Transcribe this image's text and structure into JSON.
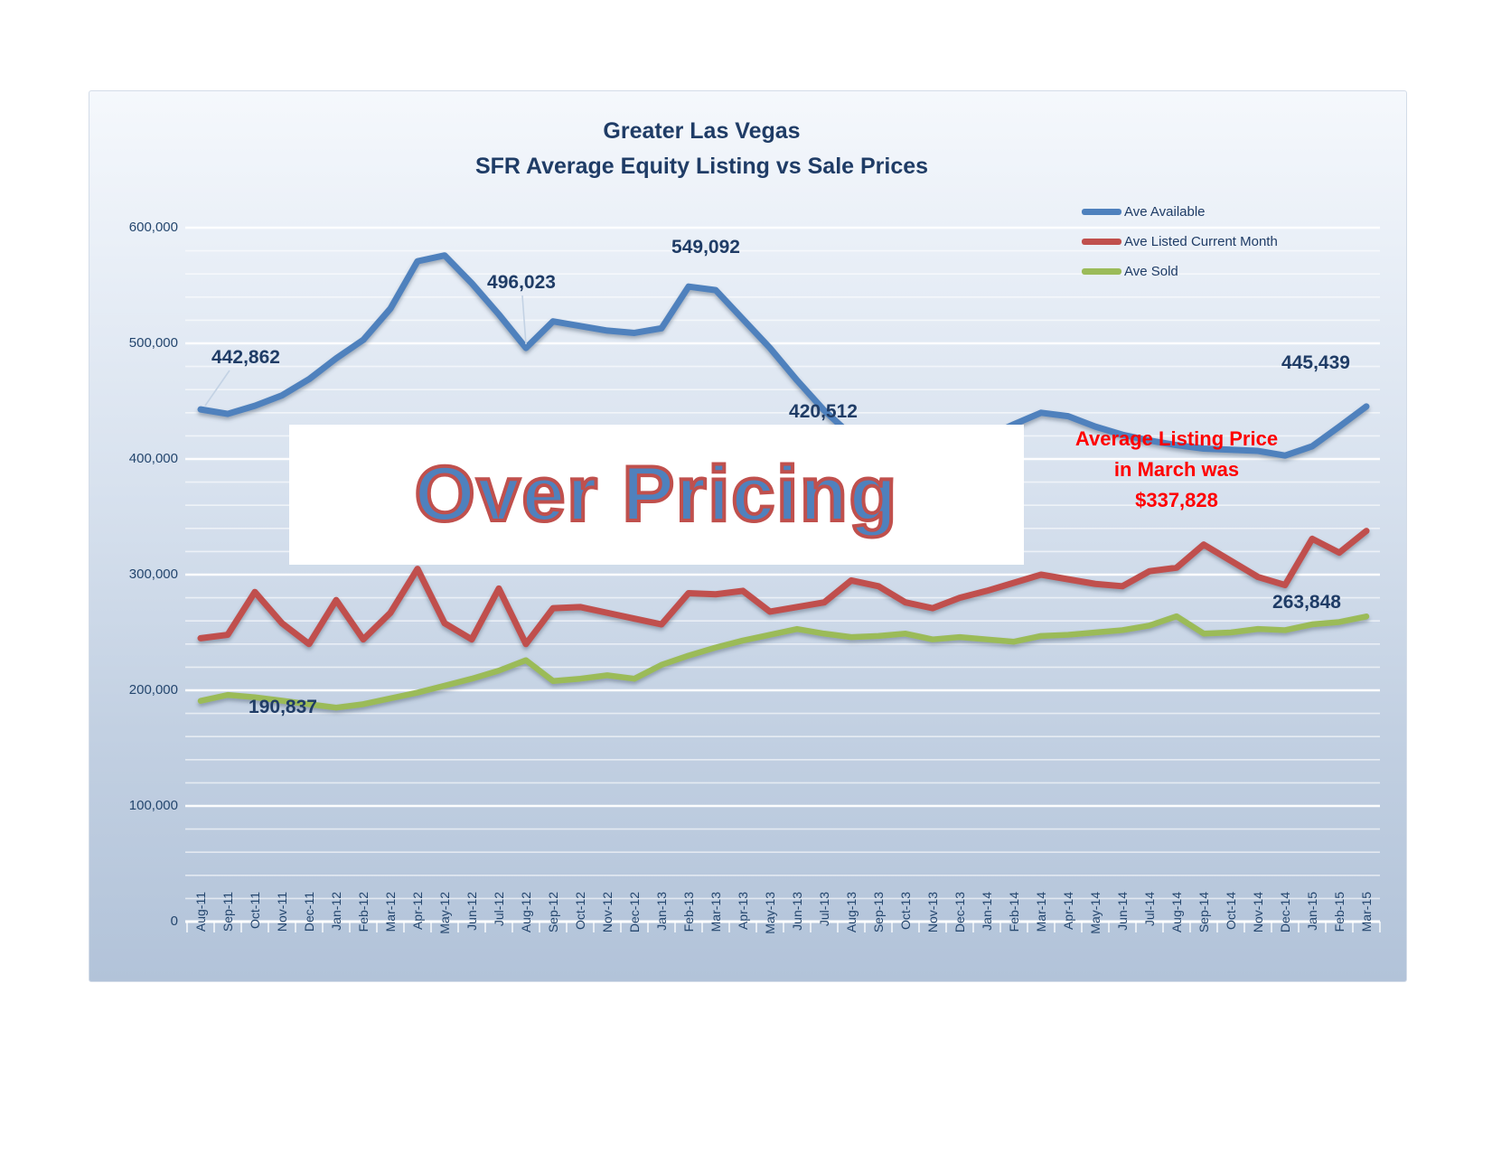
{
  "title": {
    "line1": "Greater Las Vegas",
    "line2": "SFR Average Equity Listing vs Sale Prices"
  },
  "watermark": {
    "text": "Over Pricing"
  },
  "annotation": {
    "line1": "Average Listing Price",
    "line2": "in March was",
    "line3": "$337,828"
  },
  "colors": {
    "available": "#4f81bd",
    "listed": "#c0504d",
    "sold": "#9bbb59",
    "title_text": "#1f3c66",
    "annotation_text": "#ff0000",
    "gridline": "#ffffff",
    "watermark_fill": "#4f81bd",
    "watermark_outline": "#c0504d"
  },
  "legend": {
    "items": [
      {
        "label": "Ave Available",
        "color": "#4f81bd"
      },
      {
        "label": "Ave Listed Current Month",
        "color": "#c0504d"
      },
      {
        "label": "Ave Sold",
        "color": "#9bbb59"
      }
    ]
  },
  "y_axis": {
    "tick_labels": [
      "600,000",
      "500,000",
      "400,000",
      "300,000",
      "200,000",
      "100,000",
      "0"
    ],
    "tick_values": [
      600000,
      500000,
      400000,
      300000,
      200000,
      100000,
      0
    ]
  },
  "point_labels": [
    {
      "text": "442,862",
      "series": "Ave Available",
      "category": "Aug-11"
    },
    {
      "text": "496,023",
      "series": "Ave Available",
      "category": "Aug-12"
    },
    {
      "text": "549,092",
      "series": "Ave Available",
      "category": "Feb-13"
    },
    {
      "text": "420,512",
      "series": "Ave Available",
      "category": "Aug-13"
    },
    {
      "text": "445,439",
      "series": "Ave Available",
      "category": "Mar-15"
    },
    {
      "text": "263,848",
      "series": "Ave Sold",
      "category": "Mar-15"
    },
    {
      "text": "190,837",
      "series": "Ave Sold",
      "category": "Aug-11"
    }
  ],
  "chart_data": {
    "type": "line",
    "title": "Greater Las Vegas SFR Average Equity Listing vs Sale Prices",
    "categories": [
      "Aug-11",
      "Sep-11",
      "Oct-11",
      "Nov-11",
      "Dec-11",
      "Jan-12",
      "Feb-12",
      "Mar-12",
      "Apr-12",
      "May-12",
      "Jun-12",
      "Jul-12",
      "Aug-12",
      "Sep-12",
      "Oct-12",
      "Nov-12",
      "Dec-12",
      "Jan-13",
      "Feb-13",
      "Mar-13",
      "Apr-13",
      "May-13",
      "Jun-13",
      "Jul-13",
      "Aug-13",
      "Sep-13",
      "Oct-13",
      "Nov-13",
      "Dec-13",
      "Jan-14",
      "Feb-14",
      "Mar-14",
      "Apr-14",
      "May-14",
      "Jun-14",
      "Jul-14",
      "Aug-14",
      "Sep-14",
      "Oct-14",
      "Nov-14",
      "Dec-14",
      "Jan-15",
      "Feb-15",
      "Mar-15"
    ],
    "series": [
      {
        "name": "Ave Available",
        "color": "#4f81bd",
        "values": [
          442862,
          439000,
          446000,
          455000,
          469000,
          487000,
          503000,
          530000,
          571000,
          576000,
          552000,
          525000,
          496023,
          519000,
          515000,
          511000,
          509000,
          513000,
          549092,
          546000,
          521000,
          496000,
          468000,
          442000,
          420512,
          411000,
          406000,
          404000,
          408000,
          419000,
          430000,
          440000,
          437000,
          428000,
          421000,
          416000,
          412000,
          409000,
          408000,
          407000,
          403000,
          411000,
          428000,
          445439
        ]
      },
      {
        "name": "Ave Listed Current Month",
        "color": "#c0504d",
        "values": [
          245000,
          248000,
          285000,
          258000,
          240000,
          278000,
          244000,
          267000,
          305000,
          258000,
          244000,
          288000,
          240000,
          271000,
          272000,
          267000,
          262000,
          257000,
          284000,
          283000,
          286000,
          268000,
          272000,
          276000,
          295000,
          290000,
          276000,
          271000,
          280000,
          286000,
          293000,
          300000,
          296000,
          292000,
          290000,
          303000,
          306000,
          326000,
          312000,
          298000,
          291000,
          331000,
          319000,
          337828
        ]
      },
      {
        "name": "Ave Sold",
        "color": "#9bbb59",
        "values": [
          190837,
          196000,
          194000,
          191000,
          188000,
          185000,
          188000,
          193000,
          198000,
          204000,
          210000,
          217000,
          226000,
          208000,
          210000,
          213000,
          210000,
          222000,
          230000,
          237000,
          243000,
          248000,
          253000,
          249000,
          246000,
          247000,
          249000,
          244000,
          246000,
          244000,
          242000,
          247000,
          248000,
          250000,
          252000,
          256000,
          264000,
          249000,
          250000,
          253000,
          252000,
          257000,
          259000,
          263848
        ]
      }
    ],
    "ylim": [
      0,
      600000
    ],
    "ytick_interval": 100000,
    "minor_gridline_interval": 20000,
    "grid": true,
    "legend_position": "top-right",
    "x_label_rotation": -90,
    "annotations": [
      "Over Pricing",
      "Average Listing Price in March was $337,828"
    ]
  }
}
